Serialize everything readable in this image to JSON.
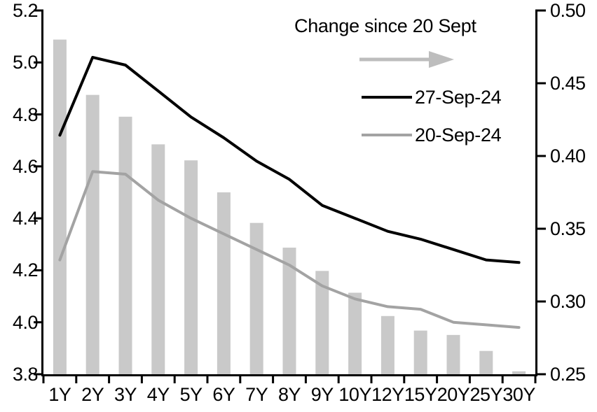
{
  "chart_data": {
    "type": "bar+line",
    "title": "",
    "categories": [
      "1Y",
      "2Y",
      "3Y",
      "4Y",
      "5Y",
      "6Y",
      "7Y",
      "8Y",
      "9Y",
      "10Y",
      "12Y",
      "15Y",
      "20Y",
      "25Y",
      "30Y"
    ],
    "series": [
      {
        "name": "Change since 20 Sept",
        "type": "bar",
        "axis": "right",
        "color": "#c9c9c9",
        "values": [
          0.48,
          0.442,
          0.427,
          0.408,
          0.397,
          0.375,
          0.354,
          0.337,
          0.321,
          0.306,
          0.29,
          0.28,
          0.277,
          0.266,
          0.252
        ]
      },
      {
        "name": "27-Sep-24",
        "type": "line",
        "axis": "left",
        "color": "#000000",
        "values": [
          4.72,
          5.02,
          4.99,
          4.89,
          4.79,
          4.71,
          4.62,
          4.55,
          4.45,
          4.4,
          4.35,
          4.32,
          4.28,
          4.24,
          4.23
        ]
      },
      {
        "name": "20-Sep-24",
        "type": "line",
        "axis": "left",
        "color": "#a3a3a3",
        "values": [
          4.24,
          4.58,
          4.57,
          4.47,
          4.4,
          4.34,
          4.28,
          4.22,
          4.14,
          4.09,
          4.06,
          4.05,
          4.0,
          3.99,
          3.98
        ]
      }
    ],
    "left_axis": {
      "min": 3.8,
      "max": 5.2,
      "tick_labels": [
        "5.2",
        "5.0",
        "4.8",
        "4.6",
        "4.4",
        "4.2",
        "4.0",
        "3.8"
      ]
    },
    "right_axis": {
      "min": 0.25,
      "max": 0.5,
      "tick_labels": [
        "0.50",
        "0.45",
        "0.40",
        "0.35",
        "0.30",
        "0.25"
      ]
    },
    "grid": false,
    "legend": {
      "position": "top-right-inside",
      "arrow_label": "Change since 20 Sept",
      "arrow_color": "#bdbdbd",
      "entries": [
        {
          "label": "27-Sep-24",
          "color": "#000000"
        },
        {
          "label": "20-Sep-24",
          "color": "#a3a3a3"
        }
      ]
    }
  }
}
